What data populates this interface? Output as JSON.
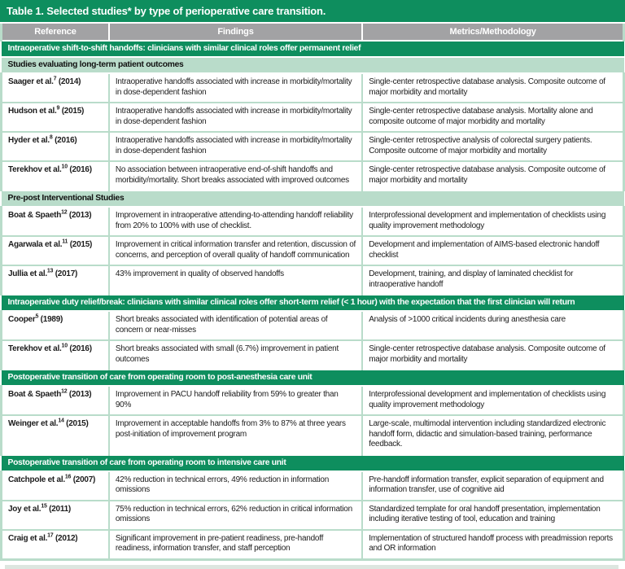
{
  "title": "Table 1. Selected studies* by type of perioperative care transition.",
  "columns": [
    "Reference",
    "Findings",
    "Metrics/Methodology"
  ],
  "colors": {
    "green_dark": "#0e8e5e",
    "green_light": "#b9dcca",
    "gray_header": "#a2a2a4",
    "title_text": "#ffffff"
  },
  "rows": [
    {
      "type": "section",
      "label": "Intraoperative shift-to-shift handoffs: clinicians with similar clinical roles offer permanent relief"
    },
    {
      "type": "subsection",
      "label": "Studies evaluating long-term patient outcomes"
    },
    {
      "type": "data",
      "reference": {
        "name": "Saager et al.",
        "sup": "7",
        "year": "(2014)"
      },
      "findings": "Intraoperative handoffs associated with increase in morbidity/mortality in dose-dependent fashion",
      "metrics": "Single-center retrospective database analysis. Composite outcome of major morbidity and mortality"
    },
    {
      "type": "data",
      "reference": {
        "name": "Hudson et al.",
        "sup": "9",
        "year": "(2015)"
      },
      "findings": "Intraoperative handoffs associated with increase in morbidity/mortality in dose-dependent fashion",
      "metrics": "Single-center retrospective database analysis. Mortality alone and composite outcome of major morbidity and mortality"
    },
    {
      "type": "data",
      "reference": {
        "name": "Hyder et al.",
        "sup": "8",
        "year": "(2016)"
      },
      "findings": "Intraoperative handoffs associated with increase in morbidity/mortality in dose-dependent fashion",
      "metrics": "Single-center retrospective analysis of colorectal surgery patients. Composite outcome of major morbidity and mortality"
    },
    {
      "type": "data",
      "reference": {
        "name": "Terekhov et al.",
        "sup": "10",
        "year": "(2016)"
      },
      "findings": "No association between intraoperative end-of-shift handoffs and morbidity/mortality. Short breaks associated with improved outcomes",
      "metrics": "Single-center retrospective database analysis. Composite outcome of major morbidity and mortality"
    },
    {
      "type": "subsection",
      "label": "Pre-post Interventional Studies"
    },
    {
      "type": "data",
      "reference": {
        "name": "Boat & Spaeth",
        "sup": "12",
        "year": "(2013)"
      },
      "findings": "Improvement in intraoperative attending-to-attending handoff reliability from 20% to 100% with use of checklist.",
      "metrics": "Interprofessional development and implementation of checklists using quality improvement methodology"
    },
    {
      "type": "data",
      "reference": {
        "name": "Agarwala et al.",
        "sup": "11",
        "year": "(2015)"
      },
      "findings": "Improvement in critical information transfer and retention, discussion of concerns, and perception of overall quality of handoff communication",
      "metrics": "Development and implementation of AIMS-based electronic handoff checklist"
    },
    {
      "type": "data",
      "reference": {
        "name": "Jullia et al.",
        "sup": "13",
        "year": "(2017)"
      },
      "findings": "43% improvement in quality of observed handoffs",
      "metrics": "Development, training, and display of laminated checklist for intraoperative handoff"
    },
    {
      "type": "section",
      "label": "Intraoperative duty relief/break: clinicians with similar clinical roles offer short-term relief (< 1 hour) with the expectation that the first clinician will return"
    },
    {
      "type": "data",
      "reference": {
        "name": "Cooper",
        "sup": "5",
        "year": "(1989)"
      },
      "findings": "Short breaks associated with identification of potential areas of concern or near-misses",
      "metrics": "Analysis of >1000 critical incidents during anesthesia care"
    },
    {
      "type": "data",
      "reference": {
        "name": "Terekhov et al.",
        "sup": "10",
        "year": "(2016)"
      },
      "findings": "Short breaks associated with small (6.7%) improvement in patient outcomes",
      "metrics": "Single-center retrospective database analysis. Composite outcome of major morbidity and mortality"
    },
    {
      "type": "section",
      "label": "Postoperative transition of care from operating room to post-anesthesia care unit"
    },
    {
      "type": "data",
      "reference": {
        "name": "Boat & Spaeth",
        "sup": "12",
        "year": "(2013)"
      },
      "findings": "Improvement in PACU handoff reliability from 59% to greater than 90%",
      "metrics": "Interprofessional development and implementation of checklists using quality improvement methodology"
    },
    {
      "type": "data",
      "reference": {
        "name": "Weinger et al.",
        "sup": "14",
        "year": "(2015)"
      },
      "findings": "Improvement in acceptable handoffs from 3% to 87% at three years post-initiation of improvement program",
      "metrics": "Large-scale, multimodal intervention including standardized electronic handoff form, didactic and simulation-based training, performance feedback."
    },
    {
      "type": "section",
      "label": "Postoperative transition of care from operating room to intensive care unit"
    },
    {
      "type": "data",
      "reference": {
        "name": "Catchpole et al.",
        "sup": "16",
        "year": "(2007)"
      },
      "findings": "42% reduction in technical errors, 49% reduction in information omissions",
      "metrics": "Pre-handoff information transfer, explicit separation of equipment and information transfer, use of cognitive aid"
    },
    {
      "type": "data",
      "reference": {
        "name": "Joy et al.",
        "sup": "15",
        "year": "(2011)"
      },
      "findings": "75% reduction in technical errors, 62% reduction in critical information omissions",
      "metrics": "Standardized template for oral handoff presentation, implementation including iterative testing of tool, education and training"
    },
    {
      "type": "data",
      "reference": {
        "name": "Craig et al.",
        "sup": "17",
        "year": "(2012)"
      },
      "findings": "Significant improvement in pre-patient readiness, pre-handoff readiness, information transfer, and staff perception",
      "metrics": "Implementation of structured handoff process with preadmission reports and OR information"
    }
  ]
}
